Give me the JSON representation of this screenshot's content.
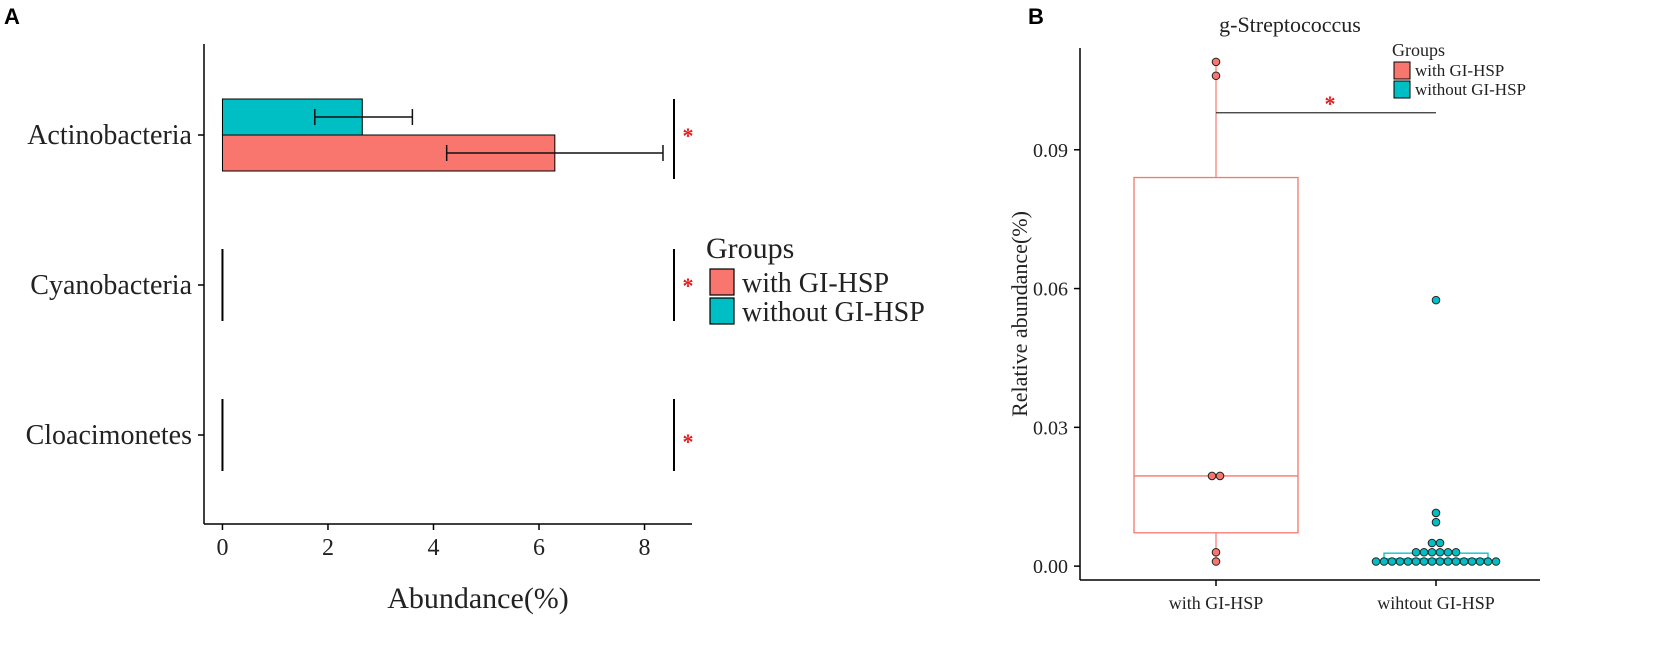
{
  "colors": {
    "with": "#F8766D",
    "without": "#00BFC4",
    "axis": "#000000",
    "sig": "#E41A1C",
    "box_with": "#F8766D",
    "box_without": "#00BFC4"
  },
  "panel_a": {
    "letter": "A"
  },
  "panel_b": {
    "letter": "B"
  },
  "chart_data": [
    {
      "type": "bar",
      "orientation": "horizontal",
      "xlabel": "Abundance(%)",
      "ylabel": "",
      "xlim": [
        -0.35,
        8.9
      ],
      "xticks": [
        0,
        2,
        4,
        6,
        8
      ],
      "categories": [
        "Actinobacteria",
        "Cyanobacteria",
        "Cloacimonetes"
      ],
      "series": [
        {
          "name": "without GI-HSP",
          "color_key": "without",
          "values": [
            2.65,
            0.0,
            0.0
          ],
          "err_low": [
            1.75,
            0.0,
            0.0
          ],
          "err_high": [
            3.6,
            0.0,
            0.0
          ]
        },
        {
          "name": "with GI-HSP",
          "color_key": "with",
          "values": [
            6.3,
            0.0,
            0.0
          ],
          "err_low": [
            4.25,
            0.0,
            0.0
          ],
          "err_high": [
            8.35,
            0.0,
            0.0
          ]
        }
      ],
      "significance": [
        "*",
        "*",
        "*"
      ],
      "legend": {
        "title": "Groups",
        "entries": [
          "with GI-HSP",
          "without GI-HSP"
        ],
        "position": "right"
      }
    },
    {
      "type": "boxplot",
      "title": "g-Streptococcus",
      "xlabel": "",
      "ylabel": "Relative abundance(%)",
      "ylim": [
        -0.003,
        0.112
      ],
      "yticks": [
        0.0,
        0.03,
        0.06,
        0.09
      ],
      "ytick_labels": [
        "0.00",
        "0.03",
        "0.06",
        "0.09"
      ],
      "categories": [
        "with GI-HSP",
        "wihtout GI-HSP"
      ],
      "boxes": [
        {
          "name": "with GI-HSP",
          "color_key": "box_with",
          "q1": 0.0072,
          "median": 0.0195,
          "q3": 0.084,
          "whisker_low": 0.001,
          "whisker_high": 0.109,
          "points": [
            0.109,
            0.106,
            0.0195,
            0.0195,
            0.003,
            0.001
          ]
        },
        {
          "name": "without GI-HSP",
          "color_key": "box_without",
          "q1": 0.0006,
          "median": 0.0016,
          "q3": 0.0028,
          "whisker_low": 0.0006,
          "whisker_high": 0.0028,
          "points": [
            0.0575,
            0.0115,
            0.0095,
            0.005,
            0.005,
            0.003,
            0.003,
            0.003,
            0.003,
            0.003,
            0.003,
            0.001,
            0.001,
            0.001,
            0.001,
            0.001,
            0.001,
            0.001,
            0.001,
            0.001,
            0.001,
            0.001,
            0.001,
            0.001,
            0.001,
            0.001,
            0.001
          ]
        }
      ],
      "significance": {
        "label": "*",
        "y": 0.098
      },
      "legend": {
        "title": "Groups",
        "entries": [
          "with GI-HSP",
          "without GI-HSP"
        ],
        "position": "top-right"
      }
    }
  ]
}
